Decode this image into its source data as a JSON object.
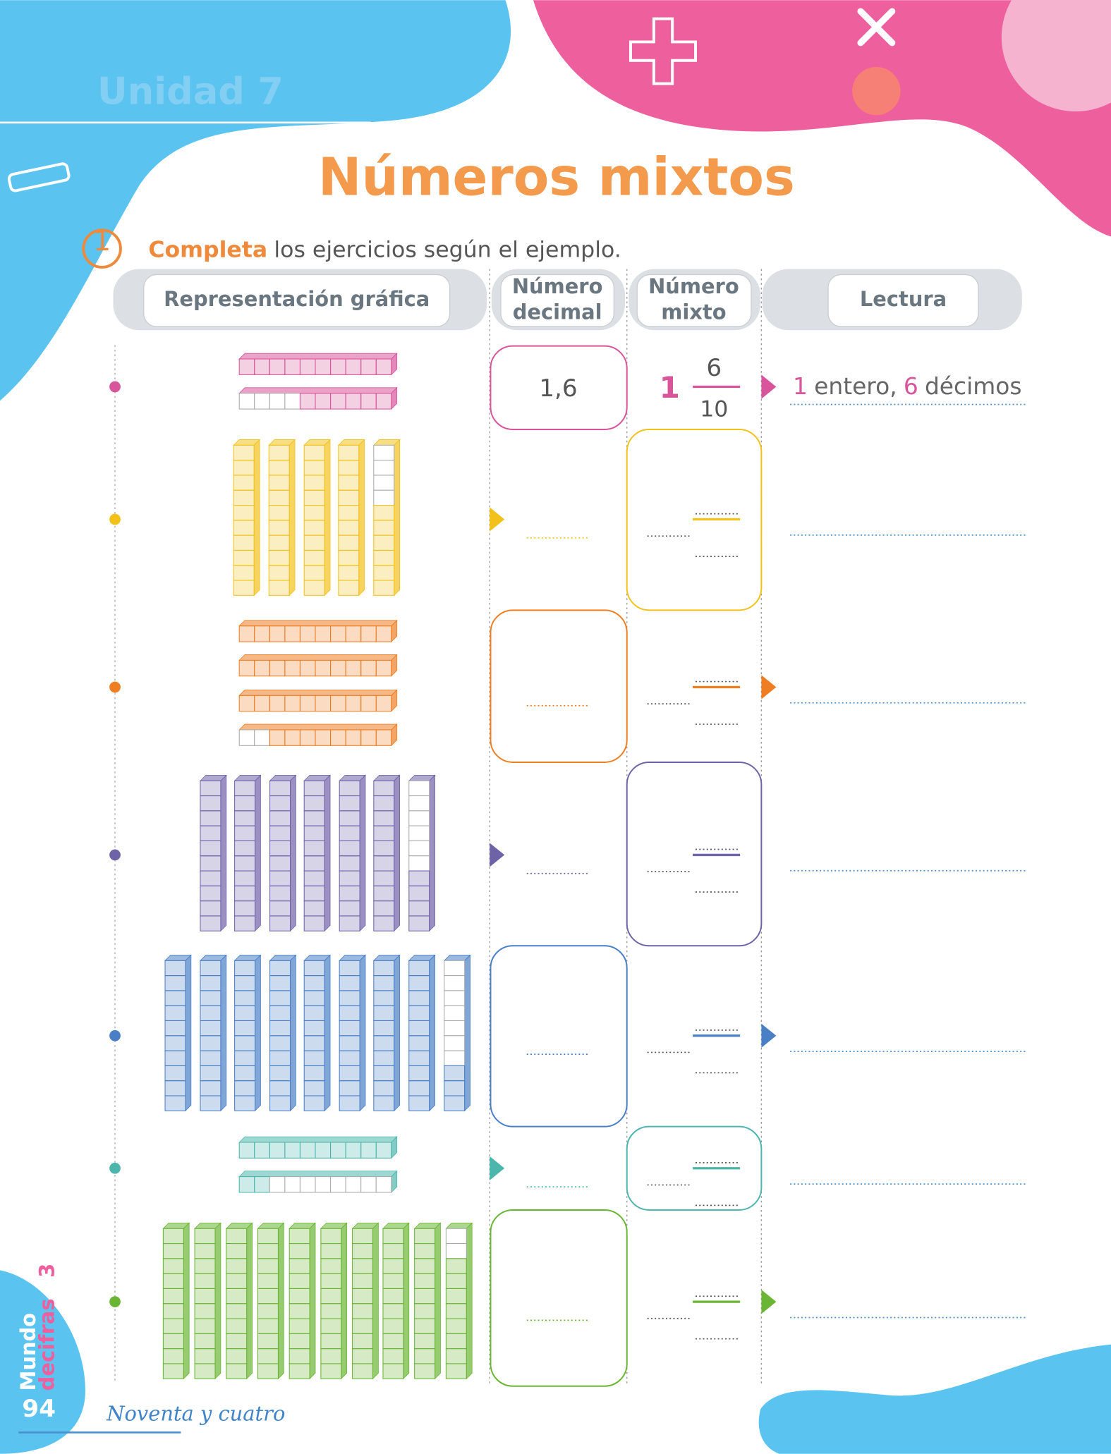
{
  "header": {
    "unit": "Unidad 7",
    "title": "Números mixtos"
  },
  "exercise": {
    "number": "1",
    "verb": "Completa",
    "instruction": "los ejercicios según el ejemplo."
  },
  "table": {
    "columns": [
      {
        "lines": [
          "Representación gráfica"
        ]
      },
      {
        "lines": [
          "Número",
          "decimal"
        ]
      },
      {
        "lines": [
          "Número",
          "mixto"
        ]
      },
      {
        "lines": [
          "Lectura"
        ]
      }
    ],
    "example": {
      "decimal": "1,6",
      "whole": "1",
      "numerator": "6",
      "denominator": "10",
      "reading": [
        "1",
        "entero,",
        "6",
        "décimos"
      ]
    }
  },
  "footer": {
    "page": "94",
    "page_words": "Noventa y cuatro",
    "series": [
      "Mundo",
      "decifras",
      "3"
    ]
  }
}
